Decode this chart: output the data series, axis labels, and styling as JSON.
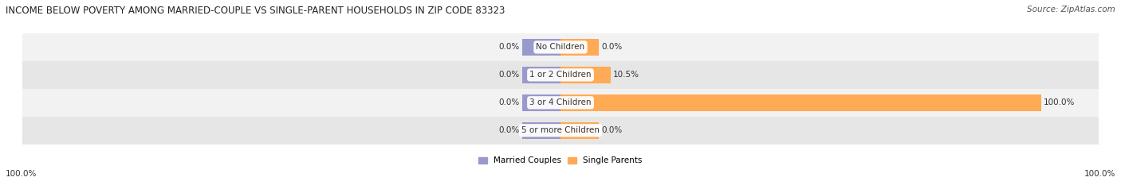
{
  "title": "INCOME BELOW POVERTY AMONG MARRIED-COUPLE VS SINGLE-PARENT HOUSEHOLDS IN ZIP CODE 83323",
  "source": "Source: ZipAtlas.com",
  "categories": [
    "No Children",
    "1 or 2 Children",
    "3 or 4 Children",
    "5 or more Children"
  ],
  "married_values": [
    0.0,
    0.0,
    0.0,
    0.0
  ],
  "single_values": [
    0.0,
    10.5,
    100.0,
    0.0
  ],
  "married_color": "#9999cc",
  "single_color": "#ffaa55",
  "row_bg_even": "#f2f2f2",
  "row_bg_odd": "#e6e6e6",
  "title_fontsize": 8.5,
  "source_fontsize": 7.5,
  "label_fontsize": 7.5,
  "category_fontsize": 7.5,
  "max_value": 100.0,
  "stub_size": 8.0,
  "legend_married": "Married Couples",
  "legend_single": "Single Parents",
  "left_label": "100.0%",
  "right_label": "100.0%",
  "bar_height": 0.6,
  "title_color": "#222222",
  "source_color": "#555555",
  "text_color": "#333333"
}
